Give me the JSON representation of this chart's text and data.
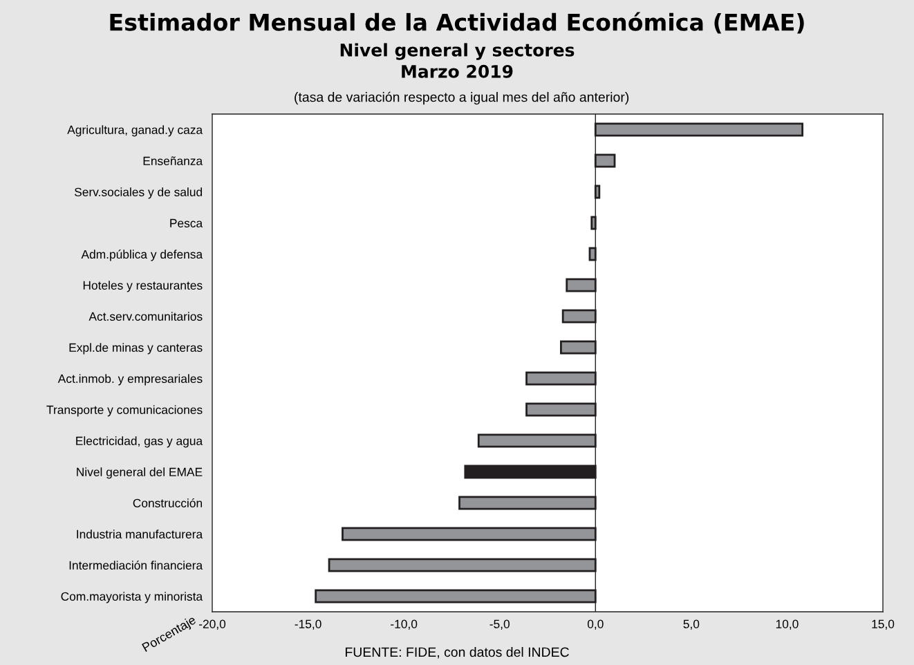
{
  "chart_data": {
    "type": "bar",
    "orientation": "horizontal",
    "title": "Estimador Mensual de la Actividad Económica (EMAE)",
    "subtitle": "Nivel general y sectores\nMarzo 2019",
    "annotations": [
      "(tasa de variación respecto a igual mes del año anterior)",
      "FUENTE: FIDE, con datos del INDEC"
    ],
    "xlabel": "Porcentaje",
    "categories": [
      "Agricultura, ganad.y caza",
      "Enseñanza",
      "Serv.sociales y de salud",
      "Pesca",
      "Adm.pública y defensa",
      "Hoteles y restaurantes",
      "Act.serv.comunitarios",
      "Expl.de minas y canteras",
      "Act.inmob. y empresariales",
      "Transporte y comunicaciones",
      "Electricidad, gas y agua",
      "Nivel general del EMAE",
      "Construcción",
      "Industria manufacturera",
      "Intermediación financiera",
      "Com.mayorista y minorista"
    ],
    "values": [
      10.8,
      1.0,
      0.2,
      -0.2,
      -0.3,
      -1.5,
      -1.7,
      -1.8,
      -3.6,
      -3.6,
      -6.1,
      -6.8,
      -7.1,
      -13.2,
      -13.9,
      -14.6
    ],
    "colors": [
      "#939598",
      "#939598",
      "#939598",
      "#939598",
      "#939598",
      "#939598",
      "#939598",
      "#939598",
      "#939598",
      "#939598",
      "#939598",
      "#231f20",
      "#939598",
      "#939598",
      "#939598",
      "#939598"
    ],
    "xlim": [
      -20,
      15
    ],
    "xticks": [
      {
        "value": -20,
        "label": "-20,0"
      },
      {
        "value": -15,
        "label": "-15,0"
      },
      {
        "value": -10,
        "label": "-10,0"
      },
      {
        "value": -5,
        "label": "-5,0"
      },
      {
        "value": 0,
        "label": "0,0"
      },
      {
        "value": 5,
        "label": "5,0"
      },
      {
        "value": 10,
        "label": "10,0"
      },
      {
        "value": 15,
        "label": "15,0"
      }
    ],
    "ref_lines": [
      {
        "axis": "x",
        "value": 0,
        "color": "#231f20"
      }
    ],
    "grid": false
  }
}
